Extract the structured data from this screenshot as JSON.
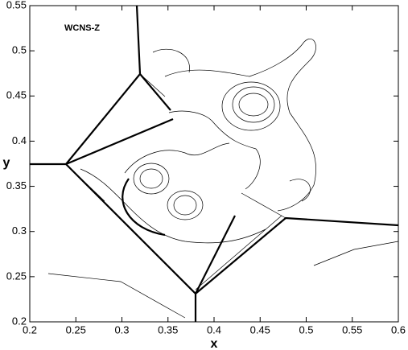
{
  "chart_data": {
    "type": "contour",
    "annotation": "WCNS-Z",
    "xlabel": "x",
    "ylabel": "y",
    "xlim": [
      0.2,
      0.6
    ],
    "ylim": [
      0.2,
      0.55
    ],
    "xticks": [
      0.2,
      0.25,
      0.3,
      0.35,
      0.4,
      0.45,
      0.5,
      0.55,
      0.6
    ],
    "yticks": [
      0.2,
      0.25,
      0.3,
      0.35,
      0.4,
      0.45,
      0.5,
      0.55
    ],
    "color": "#000000"
  }
}
